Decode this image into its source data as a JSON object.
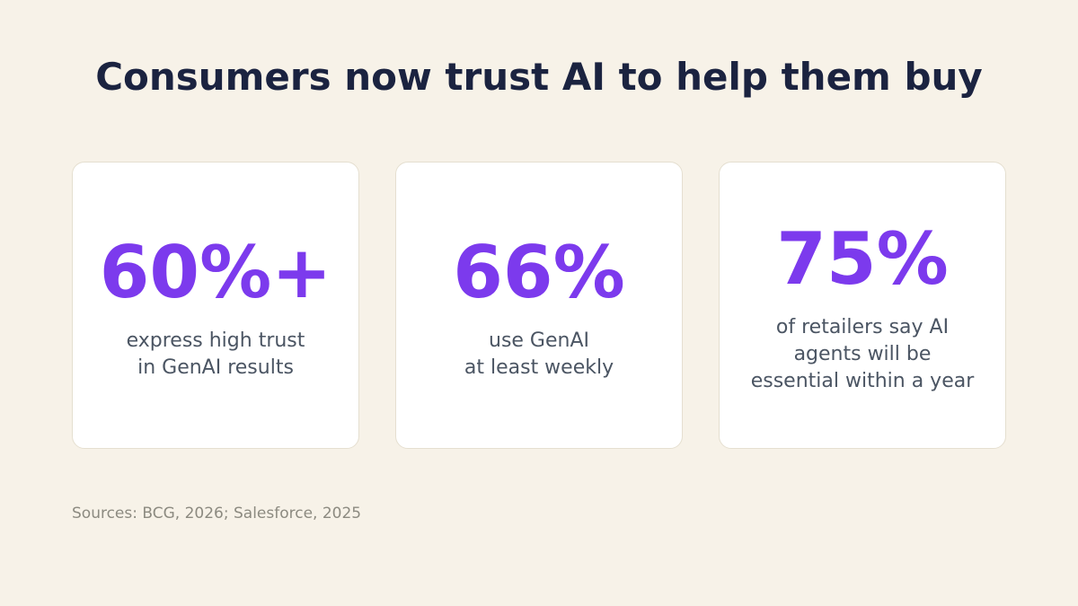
{
  "header": {
    "title": "Consumers now trust AI to help them buy"
  },
  "cards": [
    {
      "stat": "60%+",
      "description": [
        "express high trust",
        "in GenAI results"
      ]
    },
    {
      "stat": "66%",
      "description": [
        "use GenAI",
        "at least weekly"
      ]
    },
    {
      "stat": "75%",
      "description": [
        "of retailers say AI",
        "agents will be",
        "essential within a year"
      ]
    }
  ],
  "footer": {
    "source": "Sources: BCG, 2026; Salesforce, 2025"
  }
}
